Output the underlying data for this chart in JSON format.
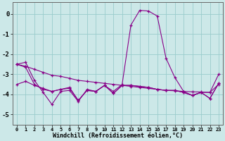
{
  "xlabel": "Windchill (Refroidissement éolien,°C)",
  "background_color": "#cce8e8",
  "grid_color": "#99cccc",
  "line_color": "#880088",
  "x": [
    0,
    1,
    2,
    3,
    4,
    5,
    6,
    7,
    8,
    9,
    10,
    11,
    12,
    13,
    14,
    15,
    16,
    17,
    18,
    19,
    20,
    21,
    22,
    23
  ],
  "line_peak": [
    -2.5,
    -2.4,
    -3.3,
    -3.9,
    -4.5,
    -3.85,
    -3.8,
    -4.35,
    -3.75,
    -3.85,
    -3.55,
    -3.85,
    -3.5,
    -0.55,
    0.18,
    0.15,
    -0.1,
    -2.2,
    -3.15,
    -3.85,
    -4.05,
    -3.9,
    -3.9,
    -3.0
  ],
  "line_trend": [
    -2.5,
    -2.6,
    -2.75,
    -2.9,
    -3.05,
    -3.1,
    -3.2,
    -3.3,
    -3.35,
    -3.4,
    -3.45,
    -3.5,
    -3.55,
    -3.6,
    -3.65,
    -3.7,
    -3.75,
    -3.8,
    -3.82,
    -3.85,
    -3.87,
    -3.88,
    -3.9,
    -3.5
  ],
  "line_flat1": [
    -2.5,
    -2.65,
    -3.5,
    -3.75,
    -3.85,
    -3.75,
    -3.7,
    -4.3,
    -3.8,
    -3.85,
    -3.55,
    -3.95,
    -3.55,
    -3.55,
    -3.6,
    -3.65,
    -3.75,
    -3.8,
    -3.8,
    -3.9,
    -4.05,
    -3.9,
    -4.2,
    -3.45
  ],
  "line_flat2": [
    -3.5,
    -3.35,
    -3.55,
    -3.7,
    -3.85,
    -3.75,
    -3.65,
    -4.3,
    -3.8,
    -3.85,
    -3.55,
    -3.95,
    -3.55,
    -3.55,
    -3.6,
    -3.65,
    -3.75,
    -3.8,
    -3.8,
    -3.9,
    -4.05,
    -3.9,
    -4.2,
    -3.45
  ],
  "ylim": [
    -5.5,
    0.6
  ],
  "yticks": [
    0,
    -1,
    -2,
    -3,
    -4,
    -5
  ],
  "figwidth": 3.2,
  "figheight": 2.0,
  "dpi": 100
}
